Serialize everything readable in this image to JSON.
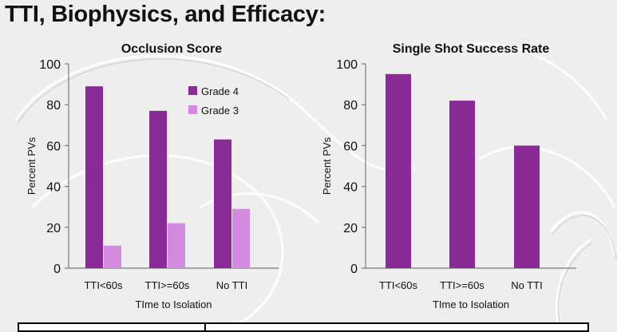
{
  "slide": {
    "title": "TTI, Biophysics, and Efficacy:"
  },
  "colors": {
    "grade4": "#8b2a96",
    "grade3": "#d38be0",
    "background": "#eeeeee"
  },
  "chart_data": [
    {
      "type": "bar",
      "title": "Occlusion Score",
      "xlabel": "TIme to Isolation",
      "ylabel": "Percent PVs",
      "ylim": [
        0,
        100
      ],
      "yticks": [
        "0",
        "20",
        "40",
        "60",
        "80",
        "100"
      ],
      "categories": [
        "TTI<60s",
        "TTI>=60s",
        "No TTI"
      ],
      "series": [
        {
          "name": "Grade 4",
          "values": [
            89,
            77,
            63
          ]
        },
        {
          "name": "Grade 3",
          "values": [
            11,
            22,
            29
          ]
        }
      ],
      "legend": "top-right"
    },
    {
      "type": "bar",
      "title": "Single Shot Success Rate",
      "xlabel": "TIme to Isolation",
      "ylabel": "Percent PVs",
      "ylim": [
        0,
        100
      ],
      "yticks": [
        "0",
        "20",
        "40",
        "60",
        "80",
        "100"
      ],
      "categories": [
        "TTI<60s",
        "TTI>=60s",
        "No TTI"
      ],
      "series": [
        {
          "name": "Success Rate",
          "values": [
            95,
            82,
            60
          ]
        }
      ]
    }
  ]
}
